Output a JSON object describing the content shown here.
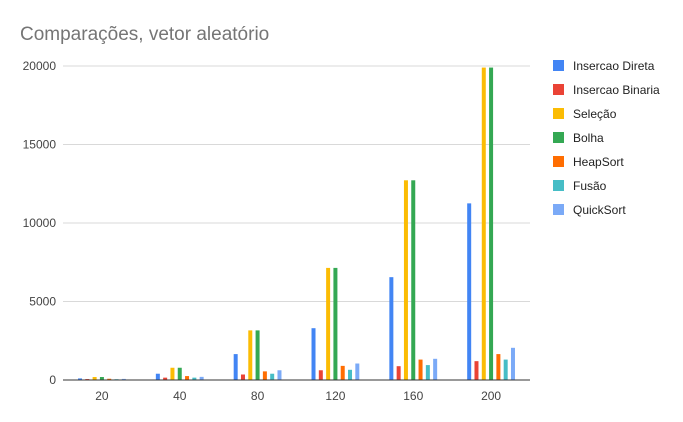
{
  "chart_data": {
    "type": "bar",
    "title": "Comparações, vetor aleatório",
    "xlabel": "",
    "ylabel": "",
    "categories": [
      "20",
      "40",
      "80",
      "120",
      "160",
      "200"
    ],
    "ylim": [
      0,
      20000
    ],
    "yticks": [
      "0",
      "5000",
      "10000",
      "15000",
      "20000"
    ],
    "grid": true,
    "legend_position": "right",
    "series": [
      {
        "name": "Insercao Direta",
        "color": "#4285f4",
        "values": [
          100,
          400,
          1650,
          3300,
          6550,
          11250
        ]
      },
      {
        "name": "Insercao Binaria",
        "color": "#ea4335",
        "values": [
          60,
          150,
          350,
          620,
          880,
          1200
        ]
      },
      {
        "name": "Seleção",
        "color": "#fbbc04",
        "values": [
          190,
          780,
          3160,
          7140,
          12720,
          19900
        ]
      },
      {
        "name": "Bolha",
        "color": "#34a853",
        "values": [
          190,
          780,
          3160,
          7140,
          12720,
          19900
        ]
      },
      {
        "name": "HeapSort",
        "color": "#ff6d01",
        "values": [
          80,
          250,
          550,
          900,
          1300,
          1650
        ]
      },
      {
        "name": "Fusão",
        "color": "#46bdc6",
        "values": [
          50,
          150,
          400,
          650,
          950,
          1300
        ]
      },
      {
        "name": "QuickSort",
        "color": "#7baaf7",
        "values": [
          70,
          200,
          620,
          1050,
          1350,
          2050
        ]
      }
    ]
  }
}
